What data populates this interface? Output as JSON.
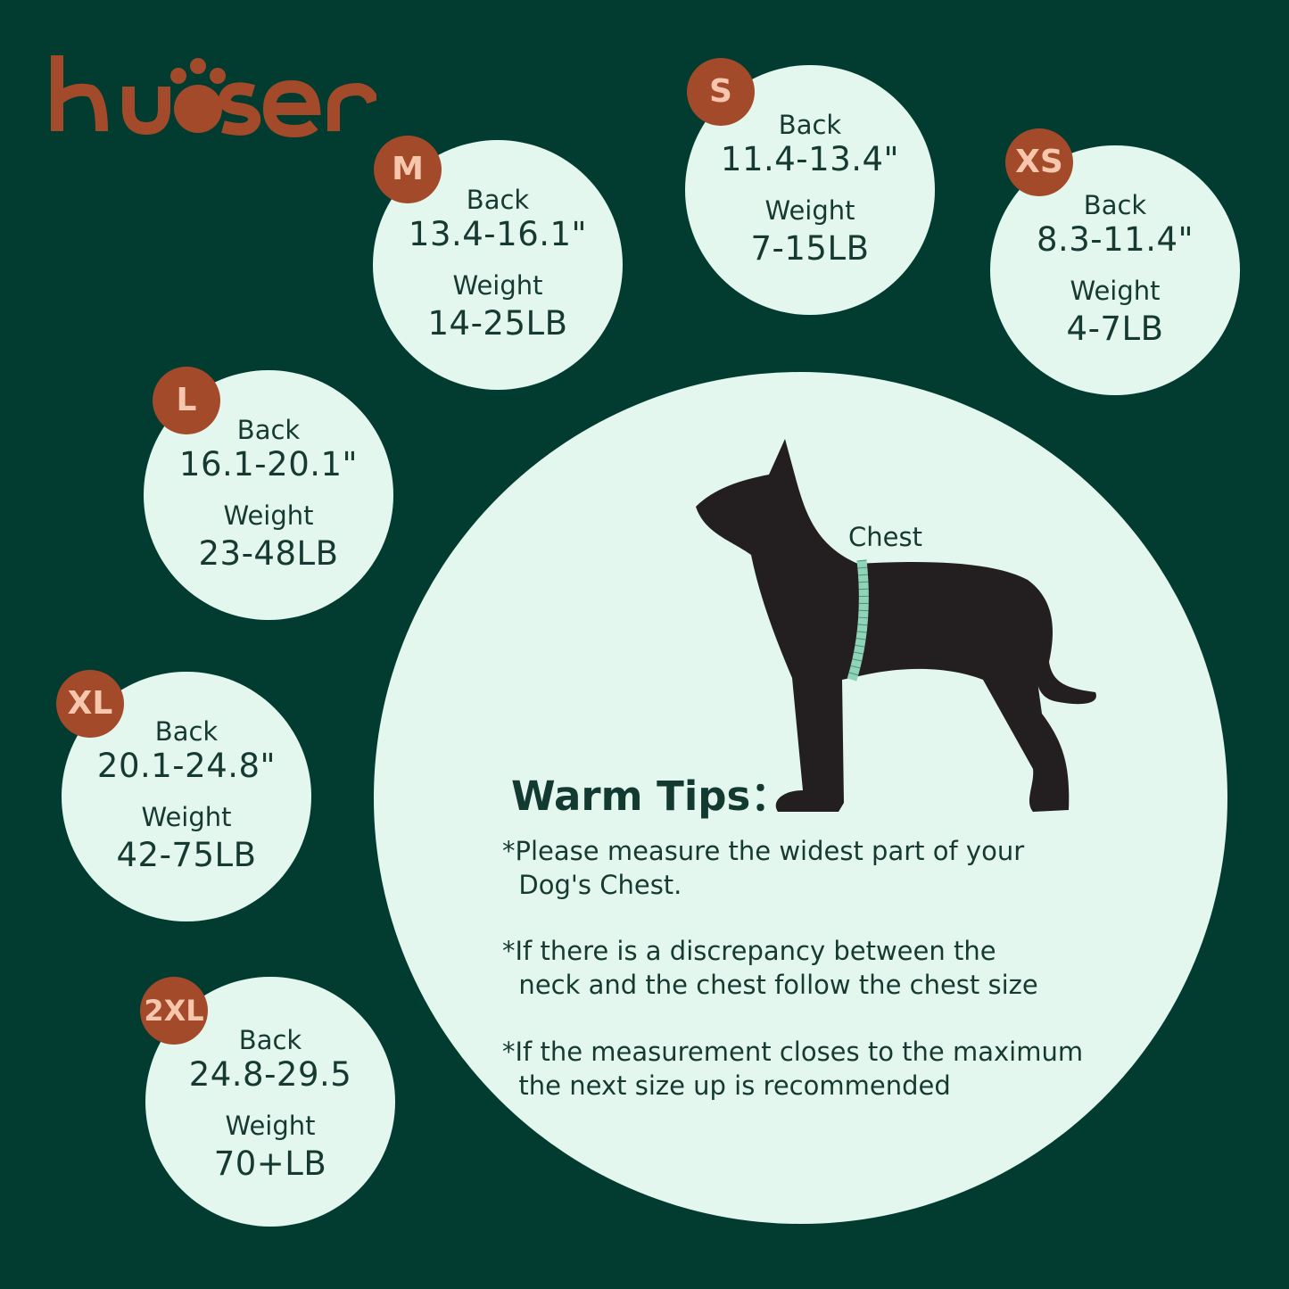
{
  "brand": {
    "logo_text": "kuoser",
    "color": "#a34a2a"
  },
  "colors": {
    "background": "#023b30",
    "circle": "#e3f7ef",
    "badge": "#a34a2a",
    "badge_text": "#f6c6ad",
    "dog": "#231f20",
    "tape": "#8fd4b8"
  },
  "sizes": [
    {
      "size": "S",
      "back_label": "Back",
      "back": "11.4-13.4\"",
      "weight_label": "Weight",
      "weight": "7-15LB"
    },
    {
      "size": "M",
      "back_label": "Back",
      "back": "13.4-16.1\"",
      "weight_label": "Weight",
      "weight": "14-25LB"
    },
    {
      "size": "XS",
      "back_label": "Back",
      "back": "8.3-11.4\"",
      "weight_label": "Weight",
      "weight": "4-7LB"
    },
    {
      "size": "L",
      "back_label": "Back",
      "back": "16.1-20.1\"",
      "weight_label": "Weight",
      "weight": "23-48LB"
    },
    {
      "size": "XL",
      "back_label": "Back",
      "back": "20.1-24.8\"",
      "weight_label": "Weight",
      "weight": "42-75LB"
    },
    {
      "size": "2XL",
      "back_label": "Back",
      "back": "24.8-29.5",
      "weight_label": "Weight",
      "weight": "70+LB"
    }
  ],
  "illustration": {
    "icon": "dog-silhouette-icon",
    "chest_label": "Chest"
  },
  "tips": {
    "title": "Warm Tips：",
    "items": [
      "*Please measure the widest part of your\n  Dog's Chest.",
      "*If there is a discrepancy between the\n  neck and the chest follow the chest size",
      "*If the measurement closes to the maximum\n  the next size up is recommended"
    ]
  }
}
